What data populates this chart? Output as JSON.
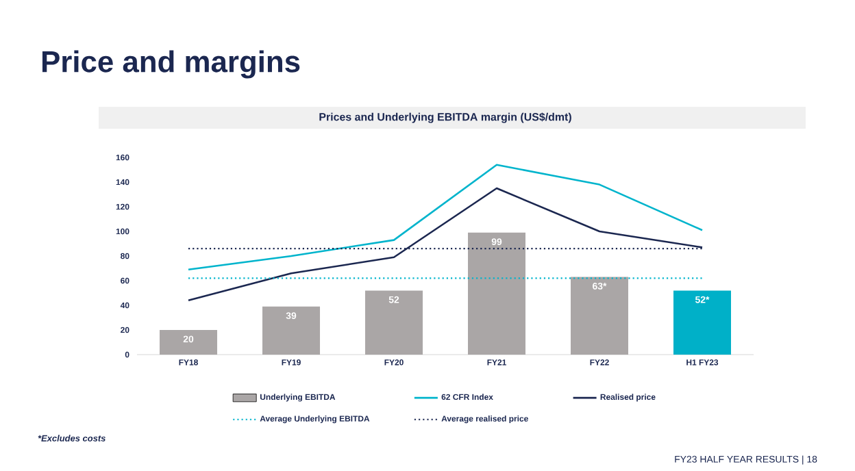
{
  "chart_data": {
    "type": "bar",
    "title": "Price and margins",
    "subtitle": "Prices and Underlying EBITDA margin (US$/dmt)",
    "categories": [
      "FY18",
      "FY19",
      "FY20",
      "FY21",
      "FY22",
      "H1 FY23"
    ],
    "series": [
      {
        "name": "Underlying EBITDA",
        "colors": [
          "#aaa6a6",
          "#aaa6a6",
          "#aaa6a6",
          "#aaa6a6",
          "#aaa6a6",
          "#00b0c8"
        ],
        "values": [
          20,
          39,
          52,
          99,
          63,
          52
        ],
        "value_labels": [
          "20",
          "39",
          "52",
          "99",
          "63*",
          "52*"
        ]
      },
      {
        "name": "62 CFR Index",
        "type": "line",
        "color": "#00b4cc",
        "values": [
          69,
          80,
          93,
          154,
          138,
          101
        ]
      },
      {
        "name": "Realised price",
        "type": "line",
        "color": "#1b2750",
        "values": [
          44,
          66,
          79,
          135,
          100,
          87
        ]
      }
    ],
    "ylim": [
      0,
      160
    ],
    "yticks": [
      0,
      20,
      40,
      60,
      80,
      100,
      120,
      140,
      160
    ],
    "ref_lines": [
      {
        "axis": "y",
        "value": 62,
        "label": "Average Underlying EBITDA",
        "color": "#00b4cc",
        "line_style": "dotted"
      },
      {
        "axis": "y",
        "value": 86,
        "label": "Average realised price",
        "color": "#1b2750",
        "line_style": "dotted"
      }
    ],
    "legend": "bottom",
    "grid": false,
    "annotations": [
      "*Excludes costs",
      "FY23 HALF YEAR RESULTS | 18"
    ]
  }
}
